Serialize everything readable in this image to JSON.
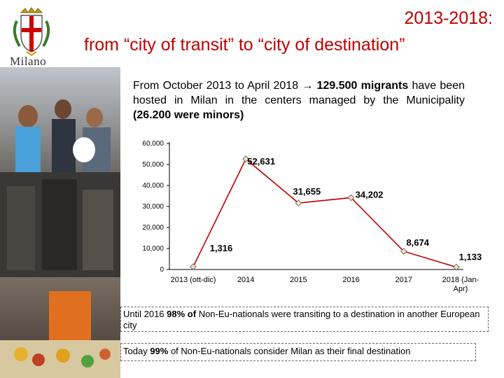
{
  "logo": {
    "name": "Milano"
  },
  "title": {
    "line1": "2013-2018:",
    "line2": "from “city of transit” to “city of destination”"
  },
  "intro": {
    "part1": "From October 2013 to April 2018 ",
    "arrow": "→",
    "bold1": " 129.500 migrants",
    "part2": " have been hosted in Milan in the centers managed by the Municipality ",
    "bold2": "(26.200 were minors)"
  },
  "chart_data": {
    "type": "line",
    "categories": [
      "2013 (ott-dic)",
      "2014",
      "2015",
      "2016",
      "2017",
      "2018 (Jan-Apr)"
    ],
    "series": [
      {
        "name": "migrants",
        "values": [
          1316,
          52631,
          31655,
          34202,
          8674,
          1133
        ]
      }
    ],
    "data_labels": [
      "1,316",
      "52,631",
      "31,655",
      "34,202",
      "8,674",
      "1,133"
    ],
    "y_ticks": [
      "0",
      "10,000",
      "20,000",
      "30,000",
      "40,000",
      "50,000",
      "60,000"
    ],
    "ylim": [
      0,
      60000
    ],
    "colors": {
      "line": "#c00000",
      "marker_fill": "#f0e0c0",
      "marker_stroke": "#555555"
    }
  },
  "notes": {
    "n1_pre": "Until 2016 ",
    "n1_bold": "98%",
    "n1_mid": "  of",
    "n1_post": " Non-Eu-nationals were transiting to a destination in another European city",
    "n2_pre": "Today ",
    "n2_bold": "99%",
    "n2_post": "  of  Non-Eu-nationals consider Milan as their final destination"
  }
}
